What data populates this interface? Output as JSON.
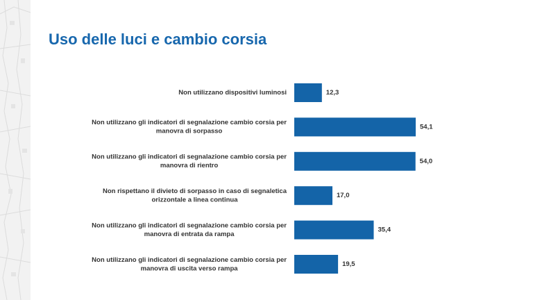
{
  "page": {
    "title": "Uso delle luci e cambio corsia"
  },
  "colors": {
    "title": "#1767ad",
    "bar": "#1464a8",
    "side_strip": "#f2f2f2",
    "text": "#333333"
  },
  "decor": {
    "side_strip": "map-pattern-decoration"
  },
  "chart_data": {
    "type": "bar",
    "orientation": "horizontal",
    "categories": [
      [
        "Non utilizzano dispositivi luminosi"
      ],
      [
        "Non utilizzano gli indicatori di segnalazione cambio corsia per",
        "manovra di sorpasso"
      ],
      [
        "Non utilizzano gli indicatori di segnalazione cambio corsia per",
        "manovra di rientro"
      ],
      [
        "Non rispettano il divieto di sorpasso in caso di segnaletica",
        "orizzontale a linea continua"
      ],
      [
        "Non utilizzano gli indicatori di segnalazione cambio corsia per",
        "manovra di entrata da rampa"
      ],
      [
        "Non utilizzano gli indicatori di segnalazione cambio corsia per",
        "manovra di uscita verso rampa"
      ]
    ],
    "values": [
      12.3,
      54.1,
      54.0,
      17.0,
      35.4,
      19.5
    ],
    "value_labels": [
      "12,3",
      "54,1",
      "54,0",
      "17,0",
      "35,4",
      "19,5"
    ],
    "xlim": [
      0,
      60
    ],
    "grid": false,
    "legend": "none",
    "title": "",
    "xlabel": "",
    "ylabel": ""
  }
}
